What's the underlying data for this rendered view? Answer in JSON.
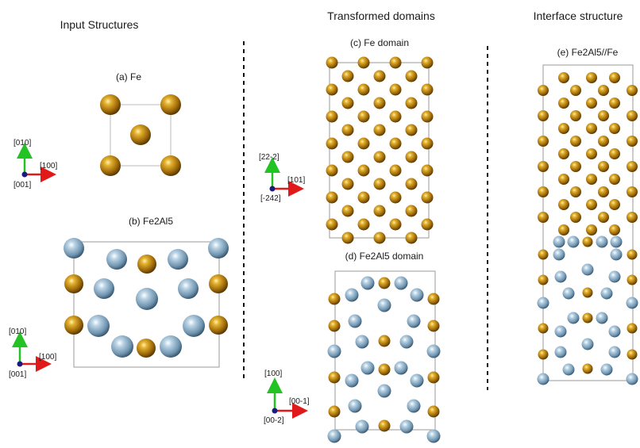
{
  "headings": {
    "input": "Input Structures",
    "transformed": "Transformed domains",
    "interface": "Interface structure"
  },
  "panels": {
    "a": "(a) Fe",
    "b": "(b) Fe2Al5",
    "c": "(c) Fe domain",
    "d": "(d) Fe2Al5 domain",
    "e": "(e) Fe2Al5//Fe"
  },
  "axes": {
    "ab_top": {
      "up": "[010]",
      "right": "[100]",
      "out": "[001]"
    },
    "ab_bot": {
      "up": "[010]",
      "right": "[100]",
      "out": "[001]"
    },
    "cd_top": {
      "up": "[22-2]",
      "right": "[101]",
      "out": "[-242]"
    },
    "cd_bot": {
      "up": "[100]",
      "right": "[00-1]",
      "out": "[00-2]"
    }
  },
  "colors": {
    "fe_atom": "#b07a12",
    "al_atom": "#8fb0c8",
    "cell_outline": "#9a9a9a",
    "axis_up": "#22c322",
    "axis_right": "#e01a1a",
    "axis_origin": "#1a1a80",
    "divider": "#111111"
  },
  "legend_icons": {
    "atoms": [
      "fe-atom-icon",
      "al-atom-icon"
    ]
  }
}
